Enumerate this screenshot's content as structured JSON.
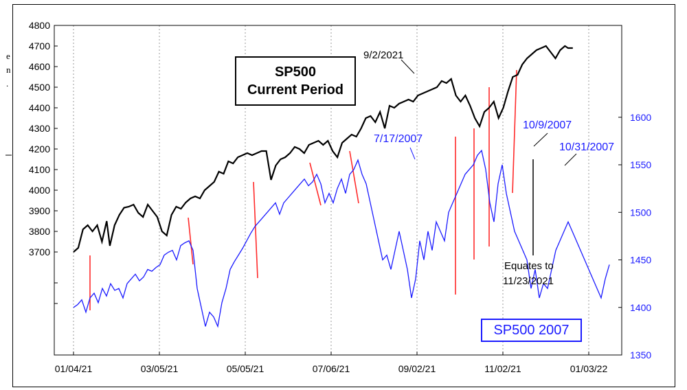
{
  "chart_data": {
    "type": "line",
    "left_axis": {
      "ylim": [
        3600,
        4800
      ],
      "ticks": [
        3700,
        3800,
        3900,
        4000,
        4100,
        4200,
        4300,
        4400,
        4500,
        4600,
        4700,
        4800
      ]
    },
    "right_axis": {
      "ylim": [
        1350,
        1650
      ],
      "ticks": [
        1350,
        1400,
        1450,
        1500,
        1550,
        1600
      ],
      "color": "#1a1aff"
    },
    "x_ticks": [
      "01/04/21",
      "03/05/21",
      "05/05/21",
      "07/06/21",
      "09/02/21",
      "11/02/21",
      "01/03/22"
    ],
    "series": [
      {
        "name": "SP500 Current Period",
        "axis": "left",
        "color": "#000000",
        "x": [
          0,
          3,
          6,
          9,
          12,
          15,
          18,
          21,
          23,
          26,
          29,
          32,
          35,
          38,
          41,
          44,
          47,
          50,
          53,
          56,
          59,
          62,
          65,
          68,
          71,
          74,
          77,
          80,
          83,
          86,
          89,
          92,
          95,
          98,
          101,
          104,
          107,
          110,
          113,
          116,
          119,
          122,
          125,
          128,
          131,
          134,
          137,
          140,
          143,
          146,
          149,
          152,
          155,
          158,
          161,
          164,
          167,
          170,
          173,
          176,
          179,
          182,
          185,
          188,
          191,
          194,
          197,
          200,
          203,
          206,
          209,
          212,
          215,
          218,
          221,
          224,
          227,
          230,
          233,
          236,
          239,
          242,
          245,
          248,
          251,
          254,
          257,
          260,
          263,
          266,
          269,
          272,
          275,
          278,
          281,
          284,
          287,
          290,
          293,
          296,
          299,
          302,
          305,
          308,
          311,
          313,
          316
        ],
        "values": [
          3700,
          3720,
          3810,
          3830,
          3800,
          3830,
          3750,
          3850,
          3730,
          3830,
          3880,
          3915,
          3920,
          3930,
          3890,
          3870,
          3930,
          3900,
          3870,
          3800,
          3780,
          3880,
          3920,
          3910,
          3940,
          3960,
          3970,
          3960,
          4000,
          4020,
          4040,
          4090,
          4080,
          4140,
          4130,
          4160,
          4170,
          4180,
          4170,
          4180,
          4190,
          4190,
          4050,
          4120,
          4150,
          4160,
          4180,
          4210,
          4200,
          4180,
          4220,
          4230,
          4240,
          4220,
          4240,
          4190,
          4160,
          4230,
          4250,
          4270,
          4260,
          4300,
          4350,
          4360,
          4330,
          4380,
          4300,
          4410,
          4400,
          4420,
          4430,
          4440,
          4430,
          4460,
          4470,
          4480,
          4490,
          4500,
          4530,
          4520,
          4540,
          4460,
          4430,
          4460,
          4410,
          4350,
          4310,
          4380,
          4400,
          4430,
          4350,
          4400,
          4480,
          4550,
          4560,
          4610,
          4640,
          4660,
          4680,
          4690,
          4700,
          4670,
          4640,
          4680,
          4700,
          4690,
          4690
        ]
      },
      {
        "name": "SP500 2007",
        "axis": "right",
        "color": "#1a1aff",
        "x": [
          0,
          3,
          6,
          9,
          12,
          15,
          18,
          21,
          24,
          27,
          30,
          33,
          36,
          39,
          42,
          45,
          48,
          51,
          54,
          57,
          60,
          63,
          66,
          69,
          72,
          75,
          78,
          81,
          84,
          87,
          90,
          93,
          96,
          99,
          102,
          105,
          108,
          111,
          114,
          117,
          120,
          123,
          126,
          129,
          132,
          135,
          138,
          141,
          144,
          147,
          150,
          153,
          156,
          159,
          162,
          165,
          168,
          171,
          174,
          177,
          180,
          183,
          186,
          189,
          192,
          195,
          198,
          201,
          204,
          207,
          210,
          213,
          216,
          219,
          222,
          225,
          228,
          231,
          234,
          237,
          240,
          243,
          246,
          249,
          252,
          255,
          258,
          261,
          264,
          267,
          270,
          273,
          276,
          279,
          282,
          285,
          288,
          291,
          294,
          297,
          300,
          303,
          306,
          309,
          312,
          315,
          318,
          321,
          324,
          327,
          330,
          333,
          336,
          339,
          342,
          345,
          348,
          351,
          354,
          357,
          360,
          363,
          366,
          369,
          372,
          375,
          378,
          381,
          384,
          387,
          390
        ],
        "values": [
          1400,
          1403,
          1408,
          1395,
          1410,
          1415,
          1405,
          1420,
          1412,
          1425,
          1418,
          1420,
          1410,
          1425,
          1430,
          1435,
          1428,
          1432,
          1440,
          1438,
          1442,
          1445,
          1455,
          1458,
          1460,
          1450,
          1465,
          1468,
          1470,
          1460,
          1420,
          1400,
          1380,
          1395,
          1390,
          1380,
          1405,
          1420,
          1440,
          1448,
          1455,
          1462,
          1470,
          1478,
          1485,
          1490,
          1495,
          1500,
          1505,
          1510,
          1498,
          1510,
          1515,
          1520,
          1525,
          1530,
          1535,
          1528,
          1532,
          1540,
          1530,
          1510,
          1520,
          1510,
          1525,
          1535,
          1520,
          1540,
          1545,
          1555,
          1540,
          1530,
          1510,
          1490,
          1470,
          1450,
          1455,
          1440,
          1460,
          1480,
          1460,
          1440,
          1410,
          1430,
          1470,
          1450,
          1480,
          1460,
          1490,
          1480,
          1470,
          1500,
          1510,
          1520,
          1530,
          1540,
          1545,
          1550,
          1560,
          1565,
          1545,
          1510,
          1490,
          1530,
          1550,
          1520,
          1500,
          1480,
          1470,
          1460,
          1450,
          1420,
          1440,
          1410,
          1425,
          1420,
          1440,
          1460,
          1470,
          1480,
          1490,
          1480,
          1470,
          1460,
          1450,
          1440,
          1430,
          1420,
          1410,
          1430,
          1445
        ]
      }
    ],
    "annotations": {
      "title_box": [
        "SP500",
        "Current Period"
      ],
      "box_2007": "SP500 2007",
      "date_9_2_2021": "9/2/2021",
      "date_7_17_2007": "7/17/2007",
      "date_10_9_2007": "10/9/2007",
      "date_10_31_2007": "10/31/2007",
      "equates_line1": "Equates to",
      "equates_line2": "11/23/2021"
    },
    "left_edge_fragments": [
      "e",
      "n",
      "."
    ]
  }
}
